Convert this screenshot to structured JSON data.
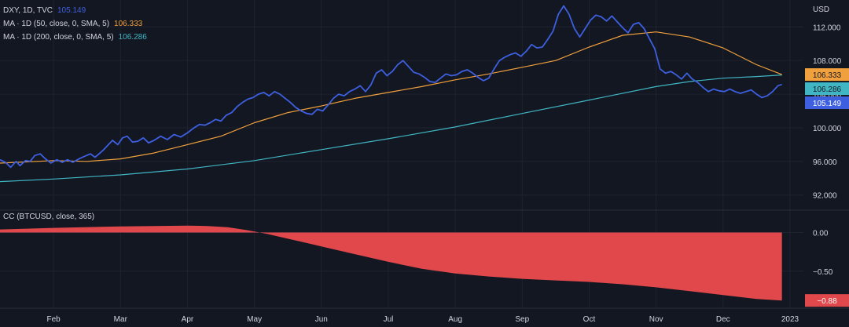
{
  "colors": {
    "background": "#131722",
    "grid": "#1f2330",
    "separator": "#2a2e39",
    "text": "#d1d4dc",
    "dxy": "#3d5fe0",
    "ma50": "#f0a03c",
    "ma200": "#40b6c4",
    "cc": "#e0484c",
    "badge_text_dark": "#131722",
    "badge_text_light": "#ffffff"
  },
  "price_pane": {
    "axis_unit": "USD",
    "legend": [
      {
        "parts": [
          "DXY, 1D, TVC"
        ],
        "value": "105.149",
        "color": "#3d5fe0"
      },
      {
        "parts": [
          "MA · 1D (50, close, 0, SMA, 5)"
        ],
        "value": "106.333",
        "color": "#f0a03c"
      },
      {
        "parts": [
          "MA · 1D (200, close, 0, SMA, 5)"
        ],
        "value": "106.286",
        "color": "#40b6c4"
      }
    ],
    "badges": [
      {
        "label": "106.333",
        "value": 106.333,
        "color": "#f0a03c",
        "text_color": "#131722"
      },
      {
        "label": "106.286",
        "value": 106.286,
        "color": "#40b6c4",
        "text_color": "#131722"
      },
      {
        "label": "105.149",
        "value": 105.149,
        "color": "#3d5fe0",
        "text_color": "#ffffff"
      }
    ]
  },
  "cc_pane": {
    "legend": "CC (BTCUSD, close, 365)",
    "badge": {
      "label": "−0.88",
      "value": -0.88,
      "color": "#e0484c",
      "text_color": "#ffffff"
    }
  },
  "chart_data": [
    {
      "type": "line",
      "title": "DXY, 1D, TVC",
      "x_unit": "months since start of 2022",
      "ylim": [
        90.2,
        115.2
      ],
      "y_ticks": [
        92,
        96,
        100,
        104,
        108,
        112
      ],
      "y_tick_labels": [
        "92.000",
        "96.000",
        "100.000",
        "104.000",
        "108.000",
        "112.000"
      ],
      "x_ticks": [
        1,
        2,
        3,
        4,
        5,
        6,
        7,
        8,
        9,
        10,
        11,
        12
      ],
      "x_tick_labels": [
        "Feb",
        "Mar",
        "Apr",
        "May",
        "Jun",
        "Jul",
        "Aug",
        "Sep",
        "Oct",
        "Nov",
        "Dec",
        "2023"
      ],
      "xlim": [
        0.2,
        12.2
      ],
      "grid": true,
      "series": [
        {
          "name": "DXY, 1D, TVC",
          "color": "#3d5fe0",
          "points": [
            [
              0.2,
              96.2
            ],
            [
              0.28,
              95.9
            ],
            [
              0.36,
              95.3
            ],
            [
              0.44,
              96.0
            ],
            [
              0.5,
              95.5
            ],
            [
              0.58,
              96.1
            ],
            [
              0.65,
              96.0
            ],
            [
              0.72,
              96.7
            ],
            [
              0.8,
              96.9
            ],
            [
              0.88,
              96.3
            ],
            [
              0.96,
              95.8
            ],
            [
              1.05,
              96.2
            ],
            [
              1.13,
              95.9
            ],
            [
              1.21,
              96.2
            ],
            [
              1.29,
              95.9
            ],
            [
              1.38,
              96.3
            ],
            [
              1.46,
              96.6
            ],
            [
              1.55,
              96.9
            ],
            [
              1.62,
              96.5
            ],
            [
              1.68,
              96.9
            ],
            [
              1.75,
              97.4
            ],
            [
              1.82,
              98.0
            ],
            [
              1.88,
              98.5
            ],
            [
              1.96,
              98.0
            ],
            [
              2.03,
              98.8
            ],
            [
              2.1,
              99.0
            ],
            [
              2.18,
              98.3
            ],
            [
              2.26,
              98.4
            ],
            [
              2.34,
              98.8
            ],
            [
              2.42,
              98.2
            ],
            [
              2.5,
              98.5
            ],
            [
              2.6,
              99.0
            ],
            [
              2.7,
              98.6
            ],
            [
              2.8,
              99.2
            ],
            [
              2.9,
              98.9
            ],
            [
              3.0,
              99.4
            ],
            [
              3.1,
              100.0
            ],
            [
              3.18,
              100.4
            ],
            [
              3.26,
              100.3
            ],
            [
              3.34,
              100.6
            ],
            [
              3.42,
              101.0
            ],
            [
              3.5,
              100.8
            ],
            [
              3.58,
              101.5
            ],
            [
              3.66,
              101.8
            ],
            [
              3.74,
              102.5
            ],
            [
              3.82,
              103.0
            ],
            [
              3.9,
              103.4
            ],
            [
              3.98,
              103.6
            ],
            [
              4.06,
              104.0
            ],
            [
              4.14,
              104.2
            ],
            [
              4.22,
              103.8
            ],
            [
              4.3,
              104.3
            ],
            [
              4.38,
              104.0
            ],
            [
              4.46,
              103.5
            ],
            [
              4.54,
              103.0
            ],
            [
              4.62,
              102.4
            ],
            [
              4.7,
              102.0
            ],
            [
              4.78,
              101.7
            ],
            [
              4.86,
              101.6
            ],
            [
              4.94,
              102.2
            ],
            [
              5.02,
              102.0
            ],
            [
              5.1,
              102.7
            ],
            [
              5.18,
              103.5
            ],
            [
              5.26,
              104.0
            ],
            [
              5.34,
              103.8
            ],
            [
              5.42,
              104.3
            ],
            [
              5.5,
              104.6
            ],
            [
              5.58,
              105.0
            ],
            [
              5.66,
              104.3
            ],
            [
              5.74,
              105.1
            ],
            [
              5.82,
              106.5
            ],
            [
              5.9,
              106.9
            ],
            [
              5.98,
              106.2
            ],
            [
              6.06,
              106.7
            ],
            [
              6.14,
              107.5
            ],
            [
              6.22,
              108.0
            ],
            [
              6.3,
              107.3
            ],
            [
              6.38,
              106.6
            ],
            [
              6.46,
              106.4
            ],
            [
              6.54,
              106.0
            ],
            [
              6.62,
              105.5
            ],
            [
              6.7,
              105.4
            ],
            [
              6.78,
              105.9
            ],
            [
              6.86,
              106.4
            ],
            [
              6.94,
              106.2
            ],
            [
              7.02,
              106.3
            ],
            [
              7.1,
              106.7
            ],
            [
              7.18,
              106.9
            ],
            [
              7.26,
              106.5
            ],
            [
              7.34,
              106.0
            ],
            [
              7.42,
              105.6
            ],
            [
              7.5,
              105.9
            ],
            [
              7.58,
              107.0
            ],
            [
              7.66,
              108.0
            ],
            [
              7.74,
              108.4
            ],
            [
              7.82,
              108.7
            ],
            [
              7.9,
              108.9
            ],
            [
              7.98,
              108.5
            ],
            [
              8.06,
              109.1
            ],
            [
              8.14,
              109.9
            ],
            [
              8.22,
              109.5
            ],
            [
              8.3,
              109.6
            ],
            [
              8.38,
              110.5
            ],
            [
              8.46,
              111.5
            ],
            [
              8.54,
              113.5
            ],
            [
              8.62,
              114.5
            ],
            [
              8.7,
              113.5
            ],
            [
              8.78,
              111.8
            ],
            [
              8.86,
              110.8
            ],
            [
              8.94,
              111.8
            ],
            [
              9.02,
              112.8
            ],
            [
              9.1,
              113.4
            ],
            [
              9.18,
              113.2
            ],
            [
              9.26,
              112.7
            ],
            [
              9.34,
              113.3
            ],
            [
              9.42,
              112.6
            ],
            [
              9.5,
              111.9
            ],
            [
              9.58,
              111.3
            ],
            [
              9.66,
              112.3
            ],
            [
              9.74,
              112.5
            ],
            [
              9.82,
              111.8
            ],
            [
              9.9,
              110.6
            ],
            [
              9.98,
              109.4
            ],
            [
              10.06,
              107.0
            ],
            [
              10.14,
              106.5
            ],
            [
              10.22,
              106.7
            ],
            [
              10.3,
              106.3
            ],
            [
              10.38,
              105.8
            ],
            [
              10.46,
              106.5
            ],
            [
              10.54,
              105.8
            ],
            [
              10.62,
              105.4
            ],
            [
              10.7,
              104.8
            ],
            [
              10.78,
              104.3
            ],
            [
              10.86,
              104.6
            ],
            [
              10.94,
              104.4
            ],
            [
              11.02,
              104.3
            ],
            [
              11.1,
              104.6
            ],
            [
              11.18,
              104.3
            ],
            [
              11.26,
              104.1
            ],
            [
              11.34,
              104.3
            ],
            [
              11.42,
              104.5
            ],
            [
              11.5,
              104.0
            ],
            [
              11.58,
              103.6
            ],
            [
              11.66,
              103.8
            ],
            [
              11.74,
              104.3
            ],
            [
              11.82,
              105.0
            ],
            [
              11.88,
              105.149
            ]
          ]
        },
        {
          "name": "MA · 1D (50, close, 0, SMA, 5)",
          "color": "#f0a03c",
          "points": [
            [
              0.2,
              95.8
            ],
            [
              1.0,
              96.1
            ],
            [
              1.5,
              96.0
            ],
            [
              2.0,
              96.3
            ],
            [
              2.5,
              97.0
            ],
            [
              3.0,
              98.0
            ],
            [
              3.5,
              99.0
            ],
            [
              4.0,
              100.6
            ],
            [
              4.5,
              101.8
            ],
            [
              5.0,
              102.6
            ],
            [
              5.5,
              103.5
            ],
            [
              6.0,
              104.2
            ],
            [
              6.5,
              104.9
            ],
            [
              7.0,
              105.7
            ],
            [
              7.5,
              106.4
            ],
            [
              8.0,
              107.2
            ],
            [
              8.5,
              108.0
            ],
            [
              9.0,
              109.6
            ],
            [
              9.5,
              111.0
            ],
            [
              10.0,
              111.4
            ],
            [
              10.5,
              110.8
            ],
            [
              11.0,
              109.5
            ],
            [
              11.5,
              107.5
            ],
            [
              11.88,
              106.333
            ]
          ]
        },
        {
          "name": "MA · 1D (200, close, 0, SMA, 5)",
          "color": "#40b6c4",
          "points": [
            [
              0.2,
              93.6
            ],
            [
              1.0,
              93.9
            ],
            [
              2.0,
              94.4
            ],
            [
              3.0,
              95.1
            ],
            [
              4.0,
              96.1
            ],
            [
              5.0,
              97.4
            ],
            [
              6.0,
              98.7
            ],
            [
              7.0,
              100.1
            ],
            [
              8.0,
              101.7
            ],
            [
              9.0,
              103.3
            ],
            [
              10.0,
              104.9
            ],
            [
              10.5,
              105.5
            ],
            [
              11.0,
              105.9
            ],
            [
              11.5,
              106.1
            ],
            [
              11.88,
              106.286
            ]
          ]
        }
      ]
    },
    {
      "type": "area",
      "title": "CC (BTCUSD, close, 365)",
      "x_unit": "months since start of 2022",
      "ylim": [
        -0.98,
        0.29
      ],
      "y_ticks": [
        0,
        -0.5
      ],
      "y_tick_labels": [
        "0.00",
        "−0.50"
      ],
      "xlim": [
        0.2,
        12.2
      ],
      "series": [
        {
          "name": "CC (BTCUSD, close, 365)",
          "color": "#e0484c",
          "points": [
            [
              0.2,
              0.04
            ],
            [
              1.0,
              0.06
            ],
            [
              2.0,
              0.08
            ],
            [
              2.5,
              0.085
            ],
            [
              3.0,
              0.09
            ],
            [
              3.3,
              0.085
            ],
            [
              3.6,
              0.07
            ],
            [
              3.9,
              0.03
            ],
            [
              4.2,
              -0.02
            ],
            [
              4.5,
              -0.08
            ],
            [
              4.8,
              -0.14
            ],
            [
              5.1,
              -0.2
            ],
            [
              5.5,
              -0.28
            ],
            [
              6.0,
              -0.38
            ],
            [
              6.5,
              -0.47
            ],
            [
              7.0,
              -0.53
            ],
            [
              7.5,
              -0.57
            ],
            [
              8.0,
              -0.6
            ],
            [
              8.5,
              -0.62
            ],
            [
              9.0,
              -0.64
            ],
            [
              9.5,
              -0.67
            ],
            [
              10.0,
              -0.71
            ],
            [
              10.5,
              -0.76
            ],
            [
              11.0,
              -0.81
            ],
            [
              11.5,
              -0.86
            ],
            [
              11.88,
              -0.88
            ]
          ]
        }
      ]
    }
  ]
}
